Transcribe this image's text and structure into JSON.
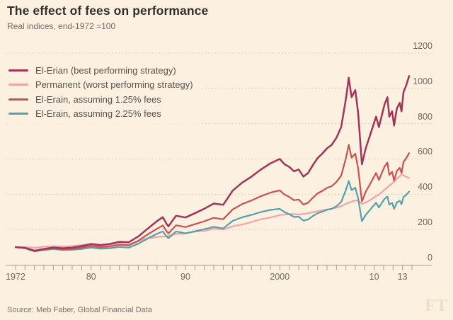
{
  "header": {
    "title": "The effect of fees on performance",
    "subtitle": "Real indices, end-1972 =100"
  },
  "footer": {
    "source": "Source: Meb Faber, Global Financial Data",
    "brand": "FT"
  },
  "colors": {
    "background": "#fcf0e0",
    "title_text": "#33302c",
    "muted_text": "#6f6962",
    "gridline": "#d2c7b4",
    "axis": "#a69c8e",
    "claret": "#a13458",
    "pink": "#f3a4a9",
    "red": "#c95150",
    "teal": "#55a0ac"
  },
  "chart_data": {
    "type": "line",
    "title": "The effect of fees on performance",
    "subtitle": "Real indices, end-1972 =100",
    "source": "Source: Meb Faber, Global Financial Data",
    "xlabel": "",
    "ylabel": "",
    "x_range": [
      1972,
      2014.3
    ],
    "y_range": [
      0,
      1200
    ],
    "grid": "dotted-horizontal",
    "legend_position": "top-left",
    "y_ticks": [
      0,
      200,
      400,
      600,
      800,
      1000,
      1200
    ],
    "x_ticks": [
      {
        "year": 1972,
        "label": "1972"
      },
      {
        "year": 1980,
        "label": "80"
      },
      {
        "year": 1990,
        "label": "90"
      },
      {
        "year": 2000,
        "label": "2000"
      },
      {
        "year": 2010,
        "label": "10"
      },
      {
        "year": 2013,
        "label": "13"
      }
    ],
    "x": [
      1972,
      1973,
      1974,
      1975,
      1976,
      1977,
      1978,
      1979,
      1980,
      1981,
      1982,
      1983,
      1984,
      1985,
      1986,
      1987,
      1987.6,
      1988,
      1988.2,
      1989,
      1990,
      1991,
      1992,
      1993,
      1994,
      1995,
      1996,
      1997,
      1998,
      1999,
      2000,
      2000.5,
      2001,
      2001.5,
      2002,
      2002.5,
      2003,
      2003.5,
      2004,
      2004.5,
      2005,
      2005.5,
      2006,
      2006.5,
      2007,
      2007.3,
      2007.6,
      2008,
      2008.3,
      2008.7,
      2009.1,
      2009.6,
      2010.2,
      2010.5,
      2011.1,
      2011.4,
      2011.6,
      2011.9,
      2012.1,
      2012.4,
      2012.7,
      2012.9,
      2013.1,
      2013.4,
      2013.7
    ],
    "series": [
      {
        "id": "el-erian",
        "name": "El-Erian (best performing strategy)",
        "color": "#a13458",
        "values": [
          100,
          96,
          80,
          90,
          98,
          94,
          97,
          106,
          118,
          112,
          118,
          130,
          128,
          160,
          205,
          248,
          270,
          232,
          218,
          278,
          268,
          292,
          318,
          347,
          340,
          420,
          465,
          500,
          540,
          575,
          600,
          570,
          555,
          530,
          540,
          500,
          520,
          565,
          605,
          630,
          660,
          680,
          720,
          780,
          940,
          1060,
          950,
          990,
          860,
          570,
          660,
          740,
          840,
          780,
          910,
          950,
          840,
          870,
          790,
          886,
          918,
          870,
          978,
          1018,
          1070
        ]
      },
      {
        "id": "permanent",
        "name": "Permanent (worst performing strategy)",
        "color": "#f3a4a9",
        "values": [
          100,
          101,
          96,
          103,
          105,
          104,
          106,
          112,
          115,
          108,
          112,
          118,
          116,
          132,
          150,
          158,
          160,
          162,
          164,
          175,
          177,
          188,
          192,
          205,
          200,
          218,
          228,
          242,
          258,
          268,
          282,
          284,
          286,
          288,
          285,
          288,
          292,
          298,
          304,
          309,
          314,
          318,
          324,
          332,
          345,
          352,
          358,
          365,
          362,
          345,
          352,
          368,
          390,
          398,
          425,
          440,
          448,
          462,
          470,
          488,
          502,
          512,
          508,
          498,
          492
        ]
      },
      {
        "id": "el-erain-125",
        "name": "El-Erain, assuming 1.25% fees",
        "color": "#c95150",
        "values": [
          100,
          95,
          78,
          87,
          93,
          88,
          90,
          97,
          107,
          100,
          104,
          113,
          110,
          136,
          172,
          205,
          223,
          190,
          178,
          224,
          214,
          230,
          247,
          266,
          258,
          314,
          344,
          365,
          389,
          409,
          422,
          398,
          385,
          366,
          370,
          341,
          352,
          380,
          405,
          419,
          436,
          446,
          470,
          505,
          605,
          680,
          607,
          630,
          545,
          359,
          414,
          461,
          520,
          481,
          557,
          579,
          510,
          527,
          477,
          533,
          550,
          520,
          583,
          605,
          633
        ]
      },
      {
        "id": "el-erain-225",
        "name": "El-Erain, assuming 2.25% fees",
        "color": "#55a0ac",
        "values": [
          100,
          94,
          76,
          84,
          89,
          84,
          85,
          90,
          98,
          91,
          94,
          101,
          97,
          119,
          149,
          176,
          189,
          161,
          151,
          189,
          178,
          190,
          202,
          215,
          206,
          249,
          269,
          283,
          299,
          311,
          317,
          298,
          287,
          271,
          273,
          250,
          257,
          276,
          292,
          301,
          312,
          317,
          332,
          356,
          424,
          475,
          423,
          437,
          377,
          247,
          283,
          314,
          352,
          325,
          374,
          387,
          341,
          351,
          317,
          353,
          363,
          343,
          384,
          397,
          414
        ]
      }
    ]
  }
}
